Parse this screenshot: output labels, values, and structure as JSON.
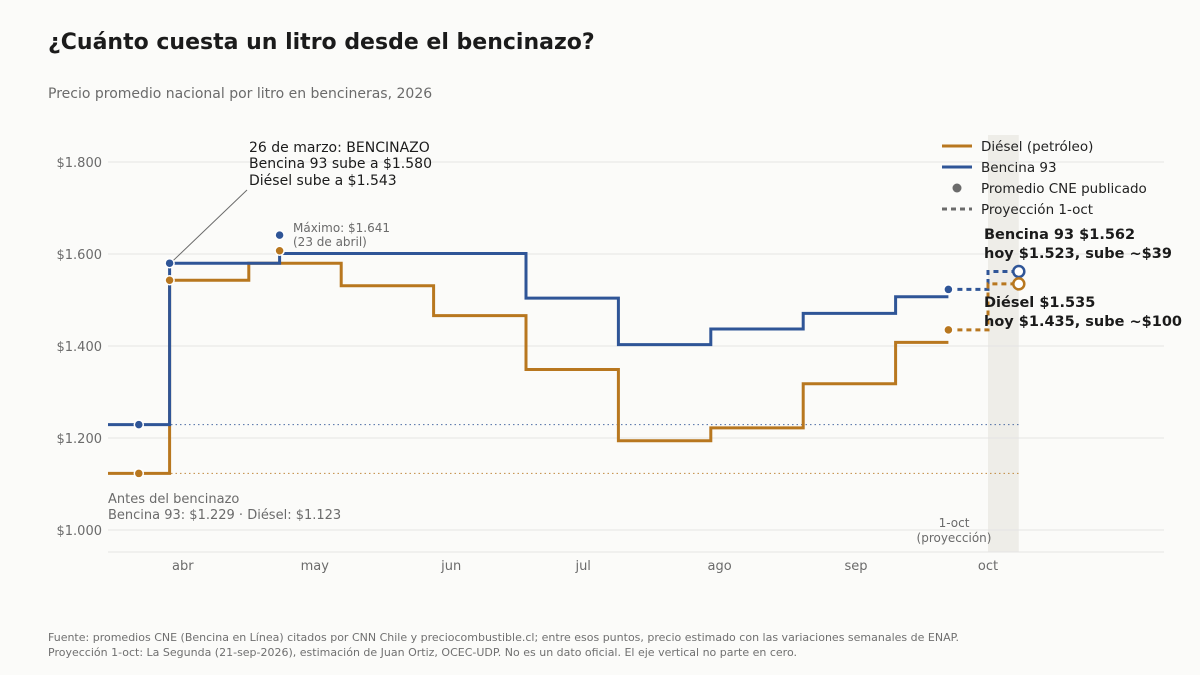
{
  "title": "¿Cuánto cuesta un litro desde el bencinazo?",
  "subtitle": "Precio promedio nacional por litro en bencineras, 2026",
  "footer": {
    "line1": "Fuente: promedios CNE (Bencina en Línea) citados por CNN Chile y preciocombustible.cl; entre esos puntos, precio estimado con las variaciones semanales de ENAP.",
    "line2": "Proyección 1-oct: La Segunda (21-sep-2026), estimación de Juan Ortiz, OCEC-UDP. No es un dato oficial. El eje vertical no parte en cero."
  },
  "colors": {
    "diesel": "#b8771f",
    "b93": "#2f5597",
    "grid": "#e4e4e4",
    "band": "#eeede8",
    "muted": "#6b6b6b"
  },
  "chart_data": {
    "type": "line",
    "step": true,
    "x_axis": {
      "domain": [
        "2026-03-15",
        "2026-11-10"
      ],
      "ticks": [
        {
          "date": "2026-04-01",
          "label": "abr"
        },
        {
          "date": "2026-05-01",
          "label": "may"
        },
        {
          "date": "2026-06-01",
          "label": "jun"
        },
        {
          "date": "2026-07-01",
          "label": "jul"
        },
        {
          "date": "2026-08-01",
          "label": "ago"
        },
        {
          "date": "2026-09-01",
          "label": "sep"
        },
        {
          "date": "2026-10-01",
          "label": "oct"
        }
      ]
    },
    "y_axis": {
      "ylim": [
        950,
        1850
      ],
      "ticks": [
        {
          "value": 1000,
          "label": "$1.000"
        },
        {
          "value": 1200,
          "label": "$1.200"
        },
        {
          "value": 1400,
          "label": "$1.400"
        },
        {
          "value": 1600,
          "label": "$1.600"
        },
        {
          "value": 1800,
          "label": "$1.800"
        }
      ]
    },
    "grid": true,
    "legend_position": "top-right",
    "legend": [
      {
        "label": "Diésel (petróleo)",
        "kind": "line-diesel"
      },
      {
        "label": "Bencina 93",
        "kind": "line-b93"
      },
      {
        "label": "Promedio CNE publicado",
        "kind": "dot"
      },
      {
        "label": "Proyección 1-oct",
        "kind": "dash"
      }
    ],
    "series": [
      {
        "name": "Bencina 93",
        "key": "b93",
        "steps": [
          {
            "date": "2026-03-15",
            "value": 1229
          },
          {
            "date": "2026-03-29",
            "value": 1580
          },
          {
            "date": "2026-04-23",
            "value": 1601
          },
          {
            "date": "2026-06-18",
            "value": 1504
          },
          {
            "date": "2026-07-09",
            "value": 1403
          },
          {
            "date": "2026-07-30",
            "value": 1437
          },
          {
            "date": "2026-08-20",
            "value": 1471
          },
          {
            "date": "2026-09-10",
            "value": 1507
          },
          {
            "date": "2026-09-22",
            "value": null
          }
        ],
        "published": [
          {
            "date": "2026-03-22",
            "value": 1229
          },
          {
            "date": "2026-03-29",
            "value": 1580
          },
          {
            "date": "2026-04-23",
            "value": 1641
          },
          {
            "date": "2026-09-22",
            "value": 1523
          }
        ],
        "projection": [
          {
            "date": "2026-09-22",
            "value": 1523
          },
          {
            "date": "2026-10-01",
            "value": 1523
          },
          {
            "date": "2026-10-01",
            "value": 1562
          },
          {
            "date": "2026-10-08",
            "value": 1562
          }
        ],
        "projection_point": {
          "date": "2026-10-08",
          "value": 1562
        },
        "baseline": 1229
      },
      {
        "name": "Diésel (petróleo)",
        "key": "diesel",
        "steps": [
          {
            "date": "2026-03-15",
            "value": 1123
          },
          {
            "date": "2026-03-29",
            "value": 1543
          },
          {
            "date": "2026-04-16",
            "value": 1580
          },
          {
            "date": "2026-05-07",
            "value": 1531
          },
          {
            "date": "2026-05-28",
            "value": 1466
          },
          {
            "date": "2026-06-18",
            "value": 1349
          },
          {
            "date": "2026-07-09",
            "value": 1194
          },
          {
            "date": "2026-07-30",
            "value": 1222
          },
          {
            "date": "2026-08-20",
            "value": 1318
          },
          {
            "date": "2026-09-10",
            "value": 1408
          },
          {
            "date": "2026-09-22",
            "value": null
          }
        ],
        "published": [
          {
            "date": "2026-03-22",
            "value": 1123
          },
          {
            "date": "2026-03-29",
            "value": 1543
          },
          {
            "date": "2026-04-23",
            "value": 1607
          },
          {
            "date": "2026-09-22",
            "value": 1435
          }
        ],
        "projection": [
          {
            "date": "2026-09-22",
            "value": 1435
          },
          {
            "date": "2026-10-01",
            "value": 1435
          },
          {
            "date": "2026-10-01",
            "value": 1535
          },
          {
            "date": "2026-10-08",
            "value": 1535
          }
        ],
        "projection_point": {
          "date": "2026-10-08",
          "value": 1535
        },
        "baseline": 1123
      }
    ],
    "projection_band": {
      "from": "2026-10-01",
      "to": "2026-10-08",
      "label_line1": "1-oct",
      "label_line2": "(proyección)"
    },
    "annotations": {
      "bencinazo": {
        "line1": "26 de marzo: BENCINAZO",
        "line2": "Bencina 93 sube a $1.580",
        "line3": "Diésel sube a $1.543",
        "point": {
          "date": "2026-03-29",
          "value": 1580
        }
      },
      "maximo": {
        "line1": "Máximo: $1.641",
        "line2": "(23 de abril)",
        "point": {
          "date": "2026-04-23",
          "value": 1641
        }
      },
      "antes": {
        "line1": "Antes del bencinazo",
        "line2": "Bencina 93: $1.229 · Diésel: $1.123"
      },
      "end_b93": {
        "line1": "Bencina 93  $1.562",
        "line2": "hoy $1.523, sube ~$39"
      },
      "end_diesel": {
        "line1": "Diésel  $1.535",
        "line2": "hoy $1.435, sube ~$100"
      }
    }
  }
}
